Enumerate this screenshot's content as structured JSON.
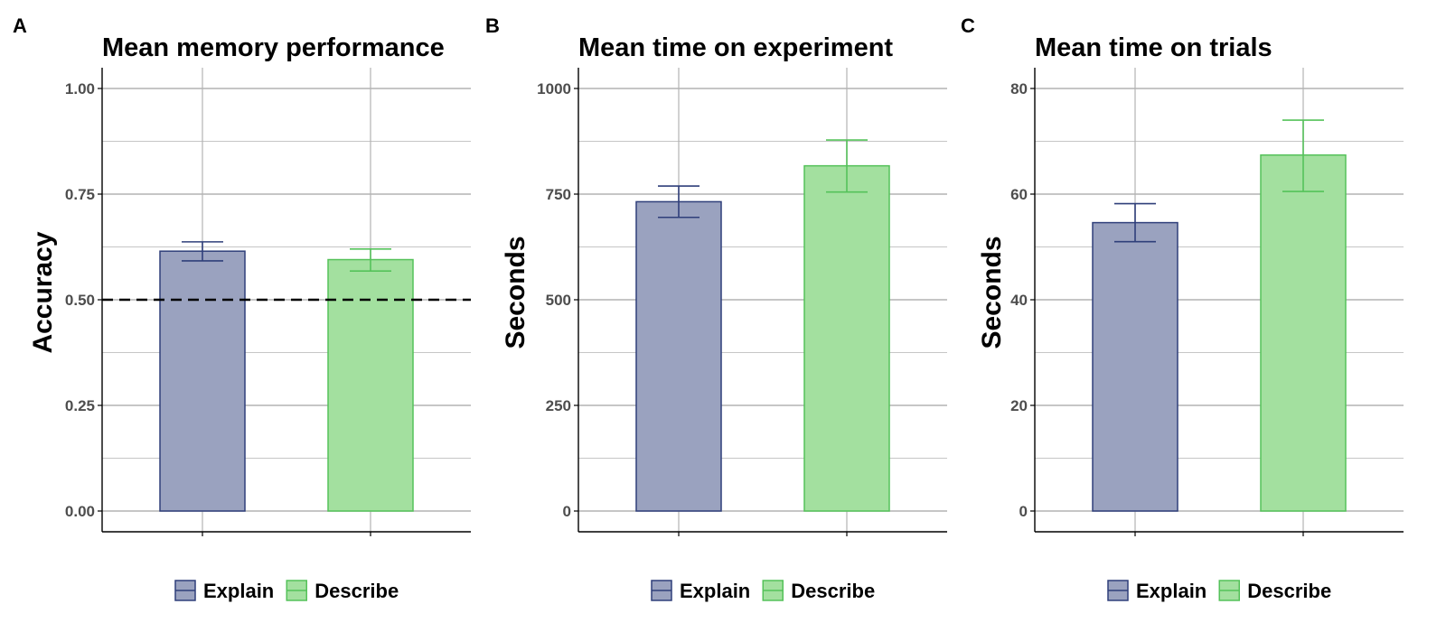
{
  "colors": {
    "explain_fill": "#9aa2bf",
    "explain_stroke": "#2f3f7a",
    "describe_fill": "#a3e09f",
    "describe_stroke": "#55c25a",
    "grid": "#b3b3b3",
    "axis": "#000000",
    "tick_text": "#4d4d4d"
  },
  "chart_data": [
    {
      "type": "bar",
      "panel_letter": "A",
      "title": "Mean memory performance",
      "ylabel": "Accuracy",
      "xlabel": "",
      "categories": [
        "Explain",
        "Describe"
      ],
      "values": [
        0.615,
        0.595
      ],
      "error_low": [
        0.592,
        0.568
      ],
      "error_high": [
        0.637,
        0.62
      ],
      "ylim": [
        0,
        1
      ],
      "yticks": [
        0,
        0.25,
        0.5,
        0.75,
        1
      ],
      "ytick_labels": [
        "0.00",
        "0.25",
        "0.50",
        "0.75",
        "1.00"
      ],
      "reference_line": 0.5,
      "grid": true,
      "legend": {
        "position": "bottom",
        "entries": [
          "Explain",
          "Describe"
        ]
      }
    },
    {
      "type": "bar",
      "panel_letter": "B",
      "title": "Mean time on experiment",
      "ylabel": "Seconds",
      "xlabel": "",
      "categories": [
        "Explain",
        "Describe"
      ],
      "values": [
        732,
        817
      ],
      "error_low": [
        695,
        755
      ],
      "error_high": [
        769,
        878
      ],
      "ylim": [
        0,
        1000
      ],
      "yticks": [
        0,
        250,
        500,
        750,
        1000
      ],
      "ytick_labels": [
        "0",
        "250",
        "500",
        "750",
        "1000"
      ],
      "grid": true,
      "legend": {
        "position": "bottom",
        "entries": [
          "Explain",
          "Describe"
        ]
      }
    },
    {
      "type": "bar",
      "panel_letter": "C",
      "title": "Mean time on trials",
      "ylabel": "Seconds",
      "xlabel": "",
      "categories": [
        "Explain",
        "Describe"
      ],
      "values": [
        54.6,
        67.4
      ],
      "error_low": [
        51.0,
        60.5
      ],
      "error_high": [
        58.2,
        74.0
      ],
      "ylim": [
        0,
        80
      ],
      "yticks": [
        0,
        20,
        40,
        60,
        80
      ],
      "ytick_labels": [
        "0",
        "20",
        "40",
        "60",
        "80"
      ],
      "grid": true,
      "legend": {
        "position": "bottom",
        "entries": [
          "Explain",
          "Describe"
        ]
      }
    }
  ]
}
